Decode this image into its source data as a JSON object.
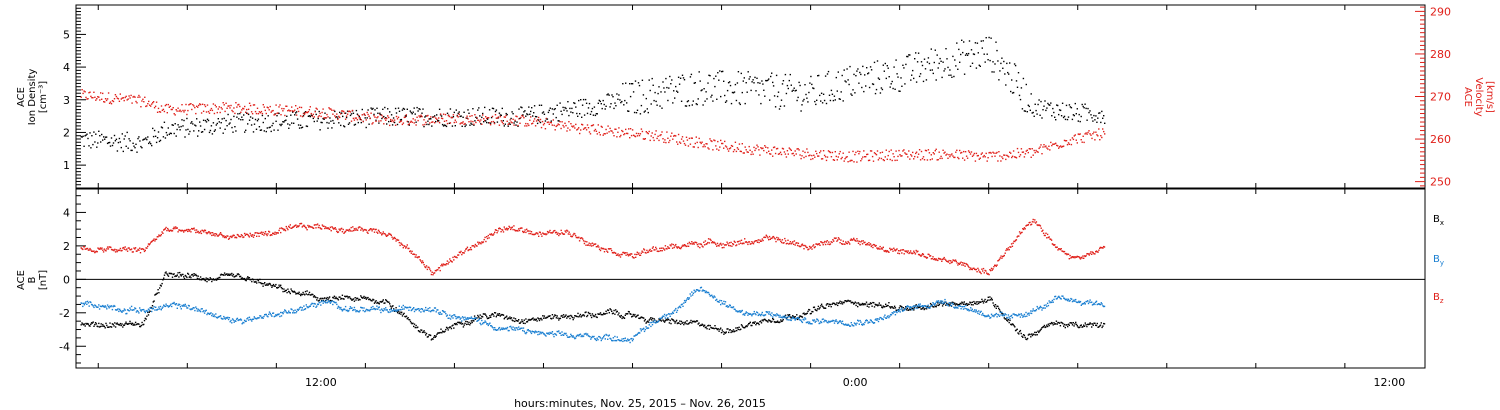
{
  "chart_data": [
    {
      "type": "scatter",
      "panel": "top",
      "ylabel_left": [
        "ACE",
        "Ion Density",
        "[cm⁻³]"
      ],
      "ylabel_right": [
        "ACE",
        "Velocity",
        "[km/s]"
      ],
      "ylim_left": [
        0.3,
        5.9
      ],
      "ylim_right": [
        248.5,
        291.5
      ],
      "yticks_left": [
        "1",
        "2",
        "3",
        "4",
        "5"
      ],
      "yticks_right": [
        "250",
        "260",
        "270",
        "280",
        "290"
      ],
      "x_unit": "hours relative to 2015-11-26 00:00",
      "xlim": [
        -17.5,
        12.8
      ],
      "series": [
        {
          "role": "density",
          "axis": "left",
          "color": "#000000",
          "x": [
            -17.4,
            -16.0,
            -15.5,
            -14.0,
            -12.0,
            -10.5,
            -9.0,
            -7.5,
            -6.0,
            -4.5,
            -3.5,
            -2.0,
            -1.0,
            0.0,
            1.0,
            2.0,
            3.0,
            3.5,
            4.0,
            5.0,
            5.6
          ],
          "y": [
            1.8,
            1.7,
            2.1,
            2.3,
            2.4,
            2.5,
            2.5,
            2.5,
            2.8,
            3.2,
            3.4,
            3.3,
            3.2,
            3.6,
            3.8,
            4.2,
            4.5,
            3.7,
            2.8,
            2.6,
            2.6
          ]
        },
        {
          "role": "velocity",
          "axis": "right",
          "color": "#e0201a",
          "x": [
            -17.4,
            -16.0,
            -15.5,
            -14.0,
            -12.0,
            -10.5,
            -9.0,
            -7.5,
            -6.0,
            -4.5,
            -3.0,
            -1.5,
            0.0,
            1.0,
            2.0,
            3.0,
            4.0,
            4.8,
            5.6
          ],
          "y": [
            270.5,
            269.0,
            267.0,
            267.5,
            266.5,
            264.5,
            265.0,
            264.5,
            262.5,
            261.0,
            258.5,
            257.0,
            256.0,
            256.5,
            256.5,
            256.0,
            257.0,
            260.0,
            261.5
          ]
        }
      ]
    },
    {
      "type": "scatter",
      "panel": "bottom",
      "ylabel": [
        "ACE",
        "B",
        "[nT]"
      ],
      "ylim": [
        -5.3,
        5.4
      ],
      "yticks": [
        "-4",
        "-2",
        "0",
        "2",
        "4"
      ],
      "x_unit": "hours relative to 2015-11-26 00:00",
      "xlim": [
        -17.5,
        12.8
      ],
      "xticks": [
        "12:00",
        "0:00",
        "12:00"
      ],
      "xlabel": "hours:minutes, Nov. 25, 2015 – Nov. 26, 2015",
      "series": [
        {
          "name": "Bx",
          "color": "#000000",
          "x": [
            -17.4,
            -16.0,
            -15.5,
            -14.0,
            -12.0,
            -10.5,
            -9.5,
            -8.5,
            -7.5,
            -5.5,
            -4.0,
            -3.0,
            -1.5,
            0.0,
            1.5,
            3.0,
            3.8,
            4.5,
            5.0,
            5.6
          ],
          "y": [
            -2.7,
            -2.6,
            0.2,
            0.0,
            -1.2,
            -1.3,
            -3.5,
            -2.0,
            -2.2,
            -2.0,
            -2.6,
            -3.0,
            -2.0,
            -1.3,
            -1.8,
            -1.1,
            -3.3,
            -2.5,
            -2.8,
            -2.8
          ]
        },
        {
          "name": "By",
          "color": "#1a7fd1",
          "x": [
            -17.4,
            -16.0,
            -15.0,
            -14.0,
            -12.0,
            -10.5,
            -9.5,
            -8.0,
            -6.5,
            -5.0,
            -3.5,
            -2.5,
            -1.0,
            0.5,
            2.0,
            3.5,
            4.5,
            5.6
          ],
          "y": [
            -1.4,
            -1.7,
            -1.6,
            -2.5,
            -1.4,
            -2.0,
            -1.5,
            -2.8,
            -3.5,
            -3.4,
            -0.6,
            -1.9,
            -2.5,
            -2.2,
            -1.2,
            -2.4,
            -1.3,
            -1.4
          ]
        },
        {
          "name": "Bz",
          "color": "#e0201a",
          "x": [
            -17.4,
            -16.0,
            -15.5,
            -14.0,
            -12.0,
            -10.5,
            -9.5,
            -8.0,
            -6.5,
            -5.0,
            -3.5,
            -2.0,
            -1.0,
            0.0,
            1.5,
            3.0,
            4.0,
            4.8,
            5.6
          ],
          "y": [
            1.8,
            1.7,
            3.0,
            2.6,
            3.1,
            3.0,
            0.5,
            3.0,
            2.8,
            1.6,
            2.2,
            2.4,
            2.0,
            2.5,
            1.4,
            0.5,
            3.5,
            1.4,
            2.0
          ]
        }
      ]
    }
  ],
  "colors": {
    "density": "#000000",
    "velocity": "#e0201a",
    "bx": "#000000",
    "by": "#1a7fd1",
    "bz": "#e0201a"
  }
}
